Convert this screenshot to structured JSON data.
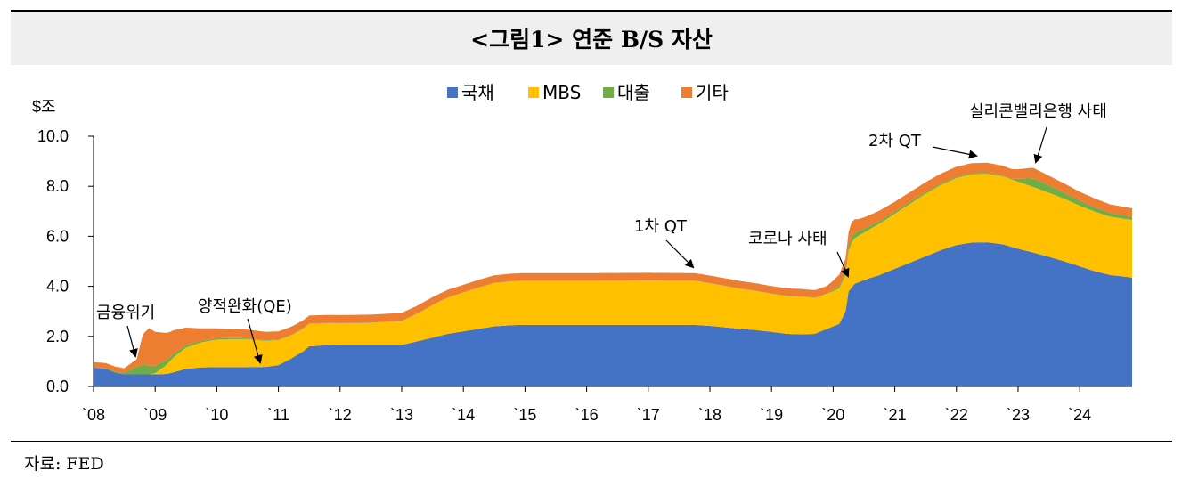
{
  "title": "<그림1> 연준 B/S 자산",
  "source": "자료: FED",
  "chart_data": {
    "type": "area",
    "stacked": true,
    "ylabel": "$조",
    "ylim": [
      0,
      10
    ],
    "yticks": [
      "0.0",
      "2.0",
      "4.0",
      "6.0",
      "8.0",
      "10.0"
    ],
    "xlim": [
      2008,
      2024.85
    ],
    "xticks": [
      {
        "x": 2008,
        "label": "`08"
      },
      {
        "x": 2009,
        "label": "`09"
      },
      {
        "x": 2010,
        "label": "`10"
      },
      {
        "x": 2011,
        "label": "`11"
      },
      {
        "x": 2012,
        "label": "`12"
      },
      {
        "x": 2013,
        "label": "`13"
      },
      {
        "x": 2014,
        "label": "`14"
      },
      {
        "x": 2015,
        "label": "`15"
      },
      {
        "x": 2016,
        "label": "`16"
      },
      {
        "x": 2017,
        "label": "`17"
      },
      {
        "x": 2018,
        "label": "`18"
      },
      {
        "x": 2019,
        "label": "`19"
      },
      {
        "x": 2020,
        "label": "`20"
      },
      {
        "x": 2021,
        "label": "`21"
      },
      {
        "x": 2022,
        "label": "`22"
      },
      {
        "x": 2023,
        "label": "`23"
      },
      {
        "x": 2024,
        "label": "`24"
      }
    ],
    "legend_position": "top-center",
    "grid": false,
    "series": [
      {
        "name": "국채",
        "color": "#4472c4",
        "points": [
          [
            2008,
            0.75
          ],
          [
            2008.2,
            0.7
          ],
          [
            2008.35,
            0.55
          ],
          [
            2008.5,
            0.48
          ],
          [
            2008.7,
            0.48
          ],
          [
            2009,
            0.48
          ],
          [
            2009.2,
            0.5
          ],
          [
            2009.35,
            0.6
          ],
          [
            2009.5,
            0.7
          ],
          [
            2009.75,
            0.76
          ],
          [
            2010,
            0.77
          ],
          [
            2010.5,
            0.77
          ],
          [
            2010.8,
            0.78
          ],
          [
            2011,
            0.85
          ],
          [
            2011.2,
            1.1
          ],
          [
            2011.4,
            1.4
          ],
          [
            2011.5,
            1.6
          ],
          [
            2011.8,
            1.65
          ],
          [
            2012,
            1.66
          ],
          [
            2012.5,
            1.66
          ],
          [
            2013,
            1.66
          ],
          [
            2013.25,
            1.8
          ],
          [
            2013.5,
            1.95
          ],
          [
            2013.75,
            2.1
          ],
          [
            2014,
            2.2
          ],
          [
            2014.25,
            2.3
          ],
          [
            2014.5,
            2.4
          ],
          [
            2014.8,
            2.45
          ],
          [
            2015,
            2.46
          ],
          [
            2016,
            2.46
          ],
          [
            2017,
            2.46
          ],
          [
            2017.75,
            2.46
          ],
          [
            2018,
            2.42
          ],
          [
            2018.5,
            2.3
          ],
          [
            2018.75,
            2.25
          ],
          [
            2019,
            2.18
          ],
          [
            2019.25,
            2.1
          ],
          [
            2019.5,
            2.08
          ],
          [
            2019.7,
            2.1
          ],
          [
            2019.9,
            2.3
          ],
          [
            2020.1,
            2.5
          ],
          [
            2020.2,
            3.0
          ],
          [
            2020.25,
            3.8
          ],
          [
            2020.35,
            4.1
          ],
          [
            2020.5,
            4.25
          ],
          [
            2020.75,
            4.45
          ],
          [
            2021,
            4.7
          ],
          [
            2021.25,
            4.95
          ],
          [
            2021.5,
            5.2
          ],
          [
            2021.75,
            5.45
          ],
          [
            2022,
            5.65
          ],
          [
            2022.25,
            5.75
          ],
          [
            2022.5,
            5.76
          ],
          [
            2022.75,
            5.68
          ],
          [
            2023,
            5.5
          ],
          [
            2023.25,
            5.35
          ],
          [
            2023.5,
            5.18
          ],
          [
            2023.75,
            5.0
          ],
          [
            2024,
            4.8
          ],
          [
            2024.25,
            4.6
          ],
          [
            2024.5,
            4.45
          ],
          [
            2024.75,
            4.38
          ],
          [
            2024.85,
            4.35
          ]
        ]
      },
      {
        "name": "MBS",
        "color": "#ffc000",
        "points": [
          [
            2008,
            0
          ],
          [
            2008.9,
            0
          ],
          [
            2009,
            0.05
          ],
          [
            2009.15,
            0.3
          ],
          [
            2009.3,
            0.6
          ],
          [
            2009.5,
            0.85
          ],
          [
            2009.75,
            1.0
          ],
          [
            2010,
            1.1
          ],
          [
            2010.25,
            1.12
          ],
          [
            2010.5,
            1.12
          ],
          [
            2010.75,
            1.05
          ],
          [
            2011,
            1.0
          ],
          [
            2011.25,
            0.92
          ],
          [
            2011.5,
            0.9
          ],
          [
            2011.75,
            0.88
          ],
          [
            2012,
            0.86
          ],
          [
            2012.5,
            0.88
          ],
          [
            2013,
            0.95
          ],
          [
            2013.25,
            1.1
          ],
          [
            2013.5,
            1.3
          ],
          [
            2013.75,
            1.45
          ],
          [
            2014,
            1.55
          ],
          [
            2014.25,
            1.65
          ],
          [
            2014.5,
            1.73
          ],
          [
            2014.8,
            1.75
          ],
          [
            2015,
            1.76
          ],
          [
            2016,
            1.76
          ],
          [
            2017,
            1.77
          ],
          [
            2017.75,
            1.76
          ],
          [
            2018,
            1.7
          ],
          [
            2018.5,
            1.6
          ],
          [
            2019,
            1.52
          ],
          [
            2019.5,
            1.5
          ],
          [
            2019.75,
            1.42
          ],
          [
            2020,
            1.4
          ],
          [
            2020.2,
            1.45
          ],
          [
            2020.3,
            1.8
          ],
          [
            2020.5,
            1.9
          ],
          [
            2020.75,
            2.05
          ],
          [
            2021,
            2.2
          ],
          [
            2021.25,
            2.35
          ],
          [
            2021.5,
            2.5
          ],
          [
            2021.75,
            2.6
          ],
          [
            2022,
            2.68
          ],
          [
            2022.25,
            2.73
          ],
          [
            2022.5,
            2.74
          ],
          [
            2022.75,
            2.72
          ],
          [
            2023,
            2.68
          ],
          [
            2023.25,
            2.62
          ],
          [
            2023.5,
            2.56
          ],
          [
            2023.75,
            2.5
          ],
          [
            2024,
            2.42
          ],
          [
            2024.25,
            2.38
          ],
          [
            2024.5,
            2.33
          ],
          [
            2024.85,
            2.3
          ]
        ]
      },
      {
        "name": "대출",
        "color": "#70ad47",
        "points": [
          [
            2008,
            0.02
          ],
          [
            2008.5,
            0.05
          ],
          [
            2008.7,
            0.3
          ],
          [
            2008.8,
            0.4
          ],
          [
            2009,
            0.3
          ],
          [
            2009.25,
            0.15
          ],
          [
            2009.5,
            0.1
          ],
          [
            2009.75,
            0.06
          ],
          [
            2010,
            0.05
          ],
          [
            2010.5,
            0.03
          ],
          [
            2011,
            0.02
          ],
          [
            2012,
            0.01
          ],
          [
            2013,
            0.01
          ],
          [
            2014,
            0.01
          ],
          [
            2016,
            0.01
          ],
          [
            2018,
            0.01
          ],
          [
            2019.9,
            0.01
          ],
          [
            2020.2,
            0.12
          ],
          [
            2020.3,
            0.22
          ],
          [
            2020.5,
            0.15
          ],
          [
            2020.75,
            0.1
          ],
          [
            2021,
            0.08
          ],
          [
            2022,
            0.05
          ],
          [
            2022.9,
            0.03
          ],
          [
            2023.2,
            0.3
          ],
          [
            2023.25,
            0.35
          ],
          [
            2023.5,
            0.3
          ],
          [
            2023.75,
            0.24
          ],
          [
            2024,
            0.2
          ],
          [
            2024.5,
            0.14
          ],
          [
            2024.85,
            0.12
          ]
        ]
      },
      {
        "name": "기타",
        "color": "#ed7d31",
        "points": [
          [
            2008,
            0.2
          ],
          [
            2008.5,
            0.2
          ],
          [
            2008.7,
            0.3
          ],
          [
            2008.8,
            1.2
          ],
          [
            2008.9,
            1.5
          ],
          [
            2009,
            1.35
          ],
          [
            2009.25,
            1.0
          ],
          [
            2009.5,
            0.7
          ],
          [
            2009.75,
            0.5
          ],
          [
            2010,
            0.4
          ],
          [
            2010.5,
            0.35
          ],
          [
            2011,
            0.33
          ],
          [
            2011.5,
            0.32
          ],
          [
            2012,
            0.32
          ],
          [
            2013,
            0.32
          ],
          [
            2014,
            0.3
          ],
          [
            2015,
            0.3
          ],
          [
            2016,
            0.3
          ],
          [
            2017,
            0.3
          ],
          [
            2018,
            0.3
          ],
          [
            2019,
            0.3
          ],
          [
            2019.9,
            0.3
          ],
          [
            2020.15,
            0.5
          ],
          [
            2020.3,
            0.6
          ],
          [
            2020.4,
            0.5
          ],
          [
            2020.5,
            0.45
          ],
          [
            2021,
            0.4
          ],
          [
            2022,
            0.4
          ],
          [
            2022.5,
            0.4
          ],
          [
            2023,
            0.38
          ],
          [
            2023.2,
            0.42
          ],
          [
            2023.5,
            0.38
          ],
          [
            2024,
            0.36
          ],
          [
            2024.5,
            0.35
          ],
          [
            2024.85,
            0.35
          ]
        ]
      }
    ],
    "annotations": [
      {
        "text": "금융위기",
        "x": 2008.7
      },
      {
        "text": "양적완화(QE)",
        "x": 2010.75
      },
      {
        "text": "1차 QT",
        "x": 2017.7
      },
      {
        "text": "코로나 사태",
        "x": 2020.2
      },
      {
        "text": "2차 QT",
        "x": 2022.35
      },
      {
        "text": "실리콘밸리은행 사태",
        "x": 2023.2
      }
    ]
  }
}
